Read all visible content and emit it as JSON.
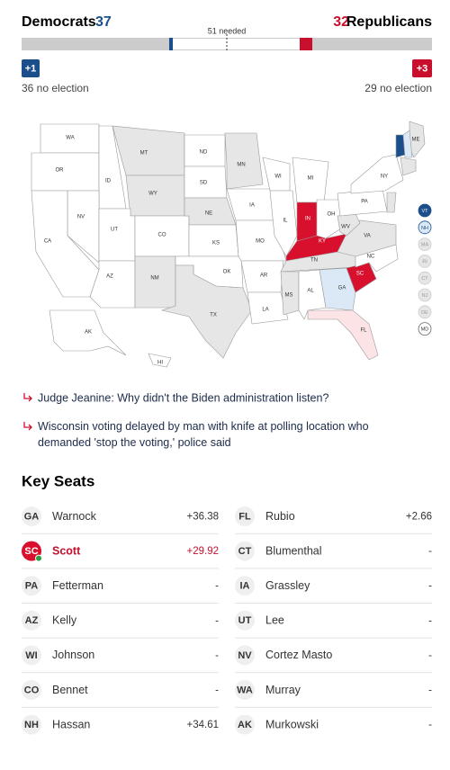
{
  "header": {
    "dem_label": "Democrats",
    "dem_seats": 37,
    "rep_seats": 32,
    "rep_label": "Republicans",
    "needed": "51 needed",
    "dem_gain": "+1",
    "rep_gain": "+3",
    "dem_no_election": "36 no election",
    "rep_no_election": "29 no election"
  },
  "map": {
    "states": [
      "WA",
      "OR",
      "ID",
      "MT",
      "WY",
      "NV",
      "CA",
      "UT",
      "CO",
      "AZ",
      "NM",
      "ND",
      "SD",
      "NE",
      "KS",
      "OK",
      "TX",
      "MN",
      "IA",
      "MO",
      "AR",
      "LA",
      "WI",
      "IL",
      "MI",
      "IN",
      "OH",
      "KY",
      "TN",
      "MS",
      "AL",
      "GA",
      "FL",
      "SC",
      "NC",
      "VA",
      "WV",
      "PA",
      "NY",
      "ME",
      "AK",
      "HI"
    ],
    "small_states": [
      "VT",
      "NH",
      "MA",
      "RI",
      "CT",
      "NJ",
      "DE",
      "MD"
    ]
  },
  "headlines": [
    "Judge Jeanine: Why didn't the Biden administration listen?",
    "Wisconsin voting delayed by man with knife at polling location who demanded 'stop the voting,' police said"
  ],
  "key_seats": {
    "title": "Key Seats",
    "rows": [
      {
        "state": "GA",
        "name": "Warnock",
        "margin": "+36.38"
      },
      {
        "state": "SC",
        "name": "Scott",
        "margin": "+29.92"
      },
      {
        "state": "PA",
        "name": "Fetterman",
        "margin": "-"
      },
      {
        "state": "AZ",
        "name": "Kelly",
        "margin": "-"
      },
      {
        "state": "WI",
        "name": "Johnson",
        "margin": "-"
      },
      {
        "state": "CO",
        "name": "Bennet",
        "margin": "-"
      },
      {
        "state": "NH",
        "name": "Hassan",
        "margin": "+34.61"
      },
      {
        "state": "FL",
        "name": "Rubio",
        "margin": "+2.66"
      },
      {
        "state": "CT",
        "name": "Blumenthal",
        "margin": "-"
      },
      {
        "state": "IA",
        "name": "Grassley",
        "margin": "-"
      },
      {
        "state": "UT",
        "name": "Lee",
        "margin": "-"
      },
      {
        "state": "NV",
        "name": "Cortez Masto",
        "margin": "-"
      },
      {
        "state": "WA",
        "name": "Murray",
        "margin": "-"
      },
      {
        "state": "AK",
        "name": "Murkowski",
        "margin": "-"
      }
    ]
  }
}
